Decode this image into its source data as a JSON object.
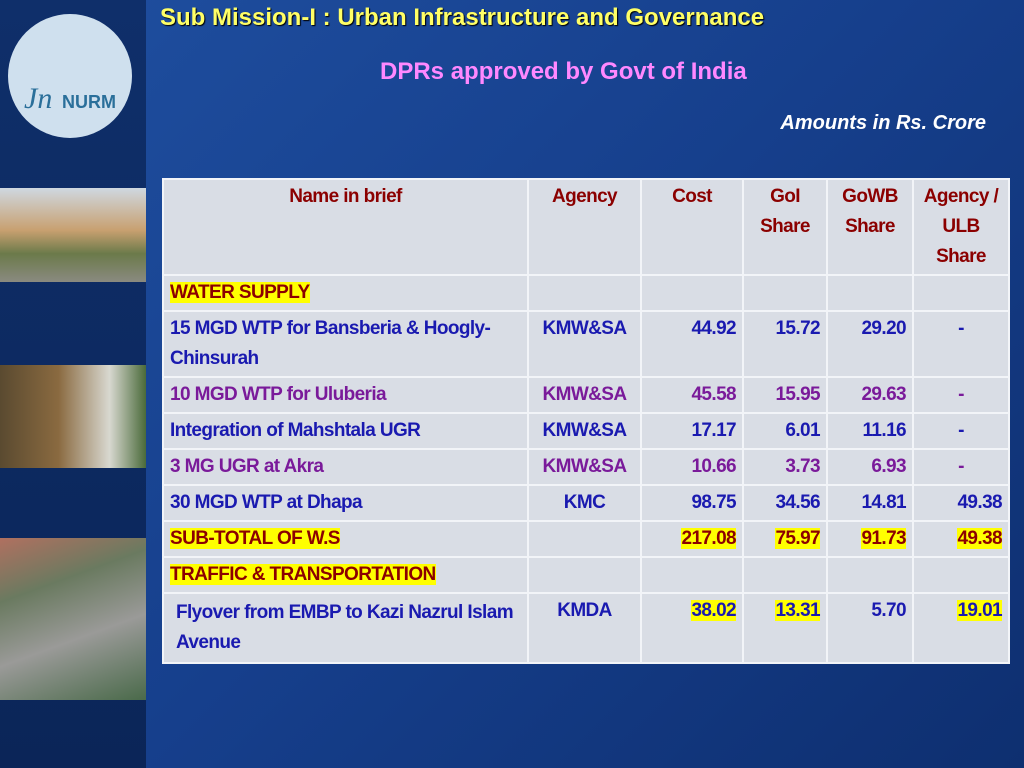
{
  "header": {
    "title": "Sub Mission-I : Urban Infrastructure and Governance",
    "subtitle": "DPRs approved by Govt of India",
    "note": "Amounts in Rs. Crore",
    "logo": {
      "script": "Jn",
      "text": "NURM"
    }
  },
  "table": {
    "columns": [
      "Name in brief",
      "Agency",
      "Cost",
      "GoI Share",
      "GoWB Share",
      "Agency / ULB Share"
    ],
    "rows": [
      {
        "kind": "section",
        "cells": [
          "WATER SUPPLY"
        ]
      },
      {
        "kind": "data",
        "color": "#1a1ab0",
        "cells": [
          "15 MGD WTP for Bansberia & Hoogly-Chinsurah",
          "KMW&SA",
          "44.92",
          "15.72",
          "29.20",
          "-"
        ]
      },
      {
        "kind": "data",
        "color": "#7a1a9a",
        "cells": [
          "10 MGD WTP for Uluberia",
          "KMW&SA",
          "45.58",
          "15.95",
          "29.63",
          "-"
        ]
      },
      {
        "kind": "data",
        "color": "#1a1ab0",
        "cells": [
          "Integration of Mahshtala UGR",
          "KMW&SA",
          "17.17",
          "6.01",
          "11.16",
          "-"
        ]
      },
      {
        "kind": "data",
        "color": "#7a1a9a",
        "cells": [
          "3 MG UGR at Akra",
          "KMW&SA",
          "10.66",
          "3.73",
          "6.93",
          "-"
        ]
      },
      {
        "kind": "data",
        "color": "#1a1ab0",
        "cells": [
          "30 MGD WTP at Dhapa",
          "KMC",
          "98.75",
          "34.56",
          "14.81",
          "49.38"
        ]
      },
      {
        "kind": "subtotal",
        "color": "#8b0000",
        "highlight": [
          0,
          2,
          3,
          4,
          5
        ],
        "cells": [
          "SUB-TOTAL OF W.S",
          "",
          "217.08",
          "75.97",
          "91.73",
          "49.38"
        ]
      },
      {
        "kind": "section",
        "cells": [
          "TRAFFIC & TRANSPORTATION"
        ]
      },
      {
        "kind": "data",
        "color": "#1a1ab0",
        "highlight": [
          2,
          3,
          5
        ],
        "cells": [
          "Flyover from EMBP to Kazi Nazrul Islam Avenue",
          "KMDA",
          "38.02",
          "13.31",
          "5.70",
          "19.01"
        ]
      }
    ]
  }
}
